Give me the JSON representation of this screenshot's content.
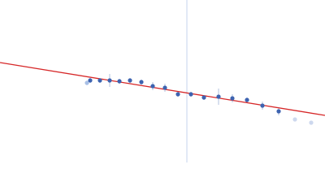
{
  "chart_data": {
    "type": "scatter",
    "x": [
      107,
      111,
      123,
      135,
      147,
      160,
      174,
      188,
      203,
      219,
      235,
      251,
      269,
      286,
      304,
      323,
      343,
      363,
      383
    ],
    "values": [
      98,
      101,
      101,
      101,
      100,
      101,
      99,
      94,
      92,
      84,
      84,
      80,
      81,
      79,
      77,
      70,
      63,
      53,
      49
    ],
    "errors": [
      3,
      3,
      3,
      8,
      3,
      3,
      3,
      5,
      5,
      3,
      3,
      3,
      10,
      5,
      3,
      5,
      5,
      2,
      2
    ],
    "colors": [
      "#a9c0e6",
      "#3d63b0",
      "#3d63b0",
      "#3d63b0",
      "#3d63b0",
      "#3d63b0",
      "#3d63b0",
      "#3d63b0",
      "#3d63b0",
      "#3d63b0",
      "#3d63b0",
      "#3d63b0",
      "#3d63b0",
      "#3d63b0",
      "#3d63b0",
      "#3d63b0",
      "#3d63b0",
      "#cdd8ee",
      "#cdd8ee"
    ],
    "fit": {
      "x": [
        0,
        400
      ],
      "values": [
        123,
        58
      ],
      "color": "#d62728"
    },
    "vline": {
      "x": 230,
      "color": "#c5d3ec"
    },
    "xlim": [
      0,
      400
    ],
    "ylim": [
      0,
      200
    ]
  }
}
